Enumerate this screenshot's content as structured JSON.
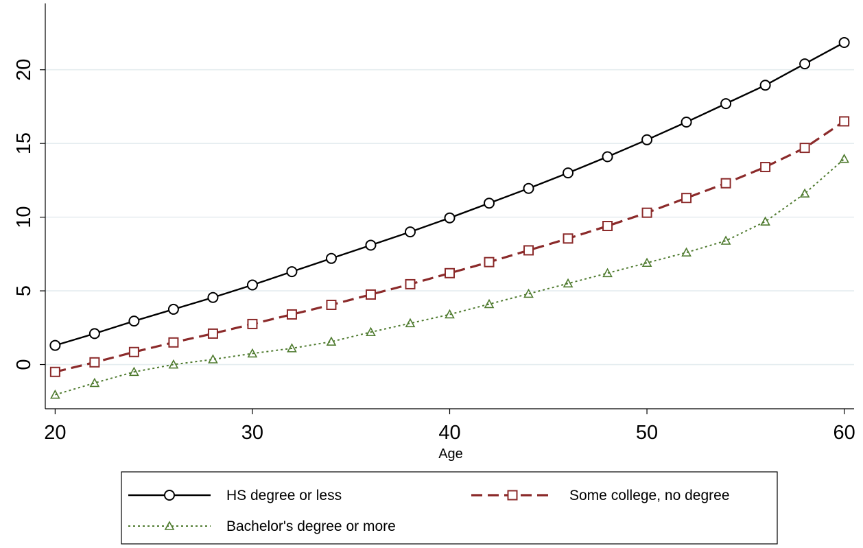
{
  "chart_data": {
    "type": "line",
    "title": "",
    "xlabel": "Age",
    "ylabel": "",
    "xlim": [
      19.5,
      60.5
    ],
    "ylim": [
      -3,
      24.5
    ],
    "xticks": [
      20,
      30,
      40,
      50,
      60
    ],
    "yticks": [
      0,
      5,
      10,
      15,
      20
    ],
    "grid": "horizontal",
    "legend_position": "bottom",
    "x": [
      20,
      22,
      24,
      26,
      28,
      30,
      32,
      34,
      36,
      38,
      40,
      42,
      44,
      46,
      48,
      50,
      52,
      54,
      56,
      58,
      60
    ],
    "series": [
      {
        "name": "HS degree or less",
        "color": "#000000",
        "line_style": "solid",
        "marker": "circle",
        "values": [
          1.3,
          2.1,
          2.95,
          3.75,
          4.55,
          5.4,
          6.3,
          7.2,
          8.1,
          9.0,
          9.95,
          10.95,
          11.95,
          13.0,
          14.1,
          15.25,
          16.45,
          17.7,
          18.95,
          20.4,
          21.85
        ]
      },
      {
        "name": "Some college, no degree",
        "color": "#8b2a2a",
        "line_style": "dashed",
        "marker": "square",
        "values": [
          -0.5,
          0.15,
          0.85,
          1.5,
          2.1,
          2.75,
          3.4,
          4.05,
          4.75,
          5.45,
          6.2,
          6.95,
          7.75,
          8.55,
          9.4,
          10.3,
          11.3,
          12.3,
          13.4,
          14.7,
          16.5
        ]
      },
      {
        "name": "Bachelor's degree or more",
        "color": "#4e7a2e",
        "line_style": "dotted",
        "marker": "triangle",
        "values": [
          -2.05,
          -1.25,
          -0.5,
          0.0,
          0.35,
          0.75,
          1.1,
          1.55,
          2.2,
          2.8,
          3.4,
          4.1,
          4.8,
          5.5,
          6.2,
          6.9,
          7.6,
          8.4,
          9.7,
          11.6,
          13.95
        ]
      }
    ]
  }
}
